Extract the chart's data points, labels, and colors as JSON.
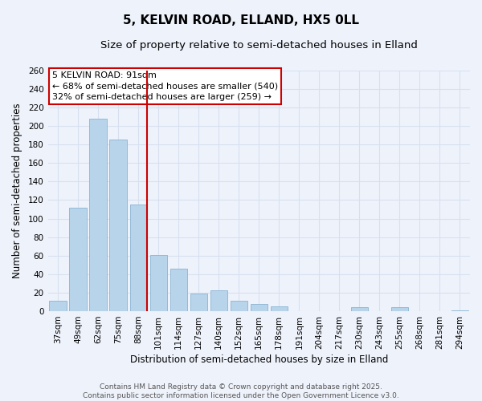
{
  "title": "5, KELVIN ROAD, ELLAND, HX5 0LL",
  "subtitle": "Size of property relative to semi-detached houses in Elland",
  "xlabel": "Distribution of semi-detached houses by size in Elland",
  "ylabel": "Number of semi-detached properties",
  "categories": [
    "37sqm",
    "49sqm",
    "62sqm",
    "75sqm",
    "88sqm",
    "101sqm",
    "114sqm",
    "127sqm",
    "140sqm",
    "152sqm",
    "165sqm",
    "178sqm",
    "191sqm",
    "204sqm",
    "217sqm",
    "230sqm",
    "243sqm",
    "255sqm",
    "268sqm",
    "281sqm",
    "294sqm"
  ],
  "values": [
    11,
    112,
    208,
    185,
    115,
    61,
    46,
    19,
    23,
    11,
    8,
    5,
    0,
    0,
    0,
    4,
    0,
    4,
    0,
    0,
    1
  ],
  "bar_color_normal": "#b8d4ea",
  "bar_color_highlight": "#b8d4ea",
  "vline_x": 4.45,
  "annotation_title": "5 KELVIN ROAD: 91sqm",
  "annotation_line1": "← 68% of semi-detached houses are smaller (540)",
  "annotation_line2": "32% of semi-detached houses are larger (259) →",
  "annotation_box_color": "#ffffff",
  "annotation_box_edge": "#cc0000",
  "vline_color": "#cc0000",
  "ylim": [
    0,
    260
  ],
  "yticks": [
    0,
    20,
    40,
    60,
    80,
    100,
    120,
    140,
    160,
    180,
    200,
    220,
    240,
    260
  ],
  "footer1": "Contains HM Land Registry data © Crown copyright and database right 2025.",
  "footer2": "Contains public sector information licensed under the Open Government Licence v3.0.",
  "background_color": "#eef2fb",
  "grid_color": "#d8e0f0",
  "title_fontsize": 11,
  "subtitle_fontsize": 9.5,
  "axis_label_fontsize": 8.5,
  "tick_fontsize": 7.5,
  "footer_fontsize": 6.5
}
